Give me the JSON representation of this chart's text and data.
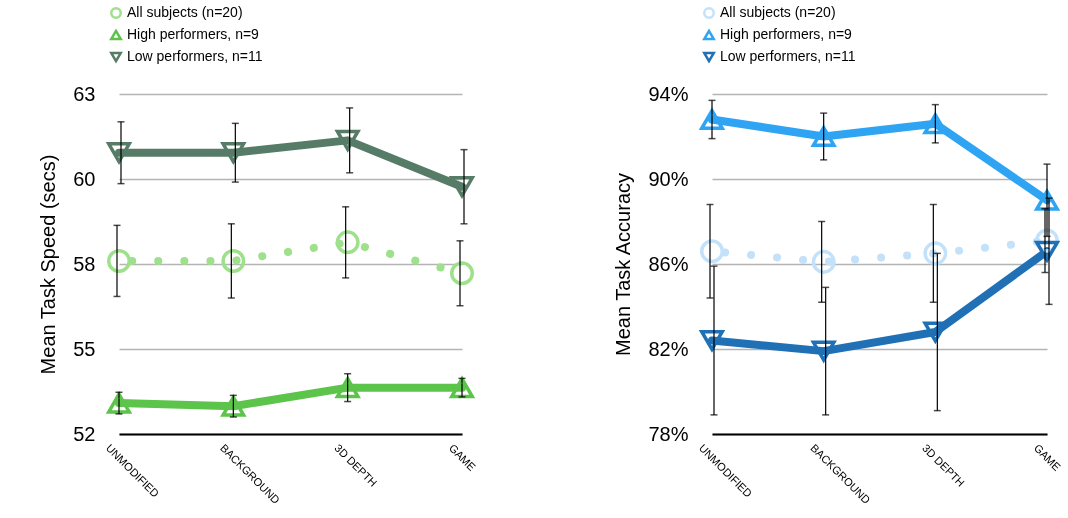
{
  "chart_data": [
    {
      "type": "line",
      "ylabel": "Mean Task Speed (secs)",
      "categories": [
        "UNMODIFIED",
        "BACKGROUND",
        "3D DEPTH",
        "GAME"
      ],
      "ylim": [
        52,
        63
      ],
      "yticks": [
        52,
        {
          "value": 54.75,
          "label": "55"
        },
        {
          "value": 57.5,
          "label": "58"
        },
        {
          "value": 60.25,
          "label": "60"
        },
        63
      ],
      "grid": "y",
      "legend": "top left",
      "series": [
        {
          "name": "All subjects (n=20)",
          "color": "#9fe08c",
          "marker": "circle",
          "line_style": "dotted",
          "values": [
            57.6,
            57.6,
            58.2,
            57.2
          ],
          "errors": [
            1.15,
            1.2,
            1.15,
            1.05
          ]
        },
        {
          "name": "High performers, n=9",
          "color": "#5cc44a",
          "marker": "triangle",
          "line_style": "solid",
          "values": [
            53.0,
            52.9,
            53.5,
            53.5
          ],
          "errors": [
            0.35,
            0.35,
            0.45,
            0.3
          ]
        },
        {
          "name": "Low performers, n=11",
          "color": "#567b67",
          "marker": "triangle-down",
          "line_style": "solid",
          "values": [
            61.1,
            61.1,
            61.5,
            60.0
          ],
          "errors": [
            1.0,
            0.95,
            1.05,
            1.2
          ]
        }
      ]
    },
    {
      "type": "line",
      "ylabel": "Mean Task Accuracy",
      "categories": [
        "UNMODIFIED",
        "BACKGROUND",
        "3D DEPTH",
        "GAME"
      ],
      "ylim": [
        78,
        94
      ],
      "yticks": [
        {
          "value": 78,
          "label": "78%"
        },
        {
          "value": 82,
          "label": "82%"
        },
        {
          "value": 86,
          "label": "86%"
        },
        {
          "value": 90,
          "label": "90%"
        },
        {
          "value": 94,
          "label": "94%"
        }
      ],
      "grid": "y",
      "legend": "top left",
      "series": [
        {
          "name": "All subjects (n=20)",
          "color": "#c4e1fa",
          "marker": "circle",
          "line_style": "dotted",
          "values": [
            86.6,
            86.1,
            86.5,
            87.1
          ],
          "errors": [
            2.2,
            1.9,
            2.3,
            1.5
          ]
        },
        {
          "name": "High performers, n=9",
          "color": "#2ea4f3",
          "marker": "triangle",
          "line_style": "solid",
          "values": [
            92.8,
            92.0,
            92.6,
            89.0
          ],
          "errors": [
            0.9,
            1.1,
            0.9,
            1.7
          ]
        },
        {
          "name": "Low performers, n=11",
          "color": "#1f70b5",
          "marker": "triangle-down",
          "line_style": "solid",
          "values": [
            82.4,
            81.9,
            82.8,
            86.6
          ],
          "errors": [
            3.5,
            3.0,
            3.7,
            2.5
          ]
        }
      ]
    }
  ]
}
